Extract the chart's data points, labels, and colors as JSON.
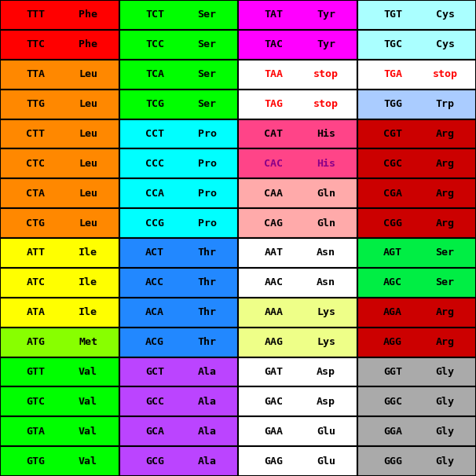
{
  "rows": [
    [
      {
        "codon": "TTT",
        "aa": "Phe",
        "bg": "#FF0000",
        "fg": "#000000",
        "aa_fg": "#000000"
      },
      {
        "codon": "TCT",
        "aa": "Ser",
        "bg": "#00FF00",
        "fg": "#000000",
        "aa_fg": "#000000"
      },
      {
        "codon": "TAT",
        "aa": "Tyr",
        "bg": "#FF00FF",
        "fg": "#000000",
        "aa_fg": "#000000"
      },
      {
        "codon": "TGT",
        "aa": "Cys",
        "bg": "#AAFFFF",
        "fg": "#000000",
        "aa_fg": "#000000"
      }
    ],
    [
      {
        "codon": "TTC",
        "aa": "Phe",
        "bg": "#FF0000",
        "fg": "#000000",
        "aa_fg": "#000000"
      },
      {
        "codon": "TCC",
        "aa": "Ser",
        "bg": "#00FF00",
        "fg": "#000000",
        "aa_fg": "#000000"
      },
      {
        "codon": "TAC",
        "aa": "Tyr",
        "bg": "#FF00FF",
        "fg": "#000000",
        "aa_fg": "#000000"
      },
      {
        "codon": "TGC",
        "aa": "Cys",
        "bg": "#AAFFFF",
        "fg": "#000000",
        "aa_fg": "#000000"
      }
    ],
    [
      {
        "codon": "TTA",
        "aa": "Leu",
        "bg": "#FF8800",
        "fg": "#000000",
        "aa_fg": "#000000"
      },
      {
        "codon": "TCA",
        "aa": "Ser",
        "bg": "#00FF00",
        "fg": "#000000",
        "aa_fg": "#000000"
      },
      {
        "codon": "TAA",
        "aa": "stop",
        "bg": "#FFFFFF",
        "fg": "#FF0000",
        "aa_fg": "#FF0000"
      },
      {
        "codon": "TGA",
        "aa": "stop",
        "bg": "#FFFFFF",
        "fg": "#FF0000",
        "aa_fg": "#FF0000"
      }
    ],
    [
      {
        "codon": "TTG",
        "aa": "Leu",
        "bg": "#FF8800",
        "fg": "#000000",
        "aa_fg": "#000000"
      },
      {
        "codon": "TCG",
        "aa": "Ser",
        "bg": "#00FF00",
        "fg": "#000000",
        "aa_fg": "#000000"
      },
      {
        "codon": "TAG",
        "aa": "stop",
        "bg": "#FFFFFF",
        "fg": "#FF0000",
        "aa_fg": "#FF0000"
      },
      {
        "codon": "TGG",
        "aa": "Trp",
        "bg": "#AACCFF",
        "fg": "#000000",
        "aa_fg": "#000000"
      }
    ],
    [
      {
        "codon": "CTT",
        "aa": "Leu",
        "bg": "#FF8800",
        "fg": "#000000",
        "aa_fg": "#000000"
      },
      {
        "codon": "CCT",
        "aa": "Pro",
        "bg": "#00FFFF",
        "fg": "#000000",
        "aa_fg": "#000000"
      },
      {
        "codon": "CAT",
        "aa": "His",
        "bg": "#FF4488",
        "fg": "#000000",
        "aa_fg": "#000000"
      },
      {
        "codon": "CGT",
        "aa": "Arg",
        "bg": "#CC0000",
        "fg": "#000000",
        "aa_fg": "#000000"
      }
    ],
    [
      {
        "codon": "CTC",
        "aa": "Leu",
        "bg": "#FF8800",
        "fg": "#000000",
        "aa_fg": "#000000"
      },
      {
        "codon": "CCC",
        "aa": "Pro",
        "bg": "#00FFFF",
        "fg": "#000000",
        "aa_fg": "#000000"
      },
      {
        "codon": "CAC",
        "aa": "His",
        "bg": "#FF4488",
        "fg": "#880088",
        "aa_fg": "#880088"
      },
      {
        "codon": "CGC",
        "aa": "Arg",
        "bg": "#CC0000",
        "fg": "#000000",
        "aa_fg": "#000000"
      }
    ],
    [
      {
        "codon": "CTA",
        "aa": "Leu",
        "bg": "#FF8800",
        "fg": "#000000",
        "aa_fg": "#000000"
      },
      {
        "codon": "CCA",
        "aa": "Pro",
        "bg": "#00FFFF",
        "fg": "#000000",
        "aa_fg": "#000000"
      },
      {
        "codon": "CAA",
        "aa": "Gln",
        "bg": "#FFAAAA",
        "fg": "#000000",
        "aa_fg": "#000000"
      },
      {
        "codon": "CGA",
        "aa": "Arg",
        "bg": "#CC0000",
        "fg": "#000000",
        "aa_fg": "#000000"
      }
    ],
    [
      {
        "codon": "CTG",
        "aa": "Leu",
        "bg": "#FF8800",
        "fg": "#000000",
        "aa_fg": "#000000"
      },
      {
        "codon": "CCG",
        "aa": "Pro",
        "bg": "#00FFFF",
        "fg": "#000000",
        "aa_fg": "#000000"
      },
      {
        "codon": "CAG",
        "aa": "Gln",
        "bg": "#FFAAAA",
        "fg": "#000000",
        "aa_fg": "#000000"
      },
      {
        "codon": "CGG",
        "aa": "Arg",
        "bg": "#CC0000",
        "fg": "#000000",
        "aa_fg": "#000000"
      }
    ],
    [
      {
        "codon": "ATT",
        "aa": "Ile",
        "bg": "#FFFF00",
        "fg": "#000000",
        "aa_fg": "#000000"
      },
      {
        "codon": "ACT",
        "aa": "Thr",
        "bg": "#2288FF",
        "fg": "#000000",
        "aa_fg": "#000000"
      },
      {
        "codon": "AAT",
        "aa": "Asn",
        "bg": "#FFFFFF",
        "fg": "#000000",
        "aa_fg": "#000000"
      },
      {
        "codon": "AGT",
        "aa": "Ser",
        "bg": "#00EE44",
        "fg": "#000000",
        "aa_fg": "#000000"
      }
    ],
    [
      {
        "codon": "ATC",
        "aa": "Ile",
        "bg": "#FFFF00",
        "fg": "#000000",
        "aa_fg": "#000000"
      },
      {
        "codon": "ACC",
        "aa": "Thr",
        "bg": "#2288FF",
        "fg": "#000000",
        "aa_fg": "#000000"
      },
      {
        "codon": "AAC",
        "aa": "Asn",
        "bg": "#FFFFFF",
        "fg": "#000000",
        "aa_fg": "#000000"
      },
      {
        "codon": "AGC",
        "aa": "Ser",
        "bg": "#00EE44",
        "fg": "#000000",
        "aa_fg": "#000000"
      }
    ],
    [
      {
        "codon": "ATA",
        "aa": "Ile",
        "bg": "#FFFF00",
        "fg": "#000000",
        "aa_fg": "#000000"
      },
      {
        "codon": "ACA",
        "aa": "Thr",
        "bg": "#2288FF",
        "fg": "#000000",
        "aa_fg": "#000000"
      },
      {
        "codon": "AAA",
        "aa": "Lys",
        "bg": "#EEFF88",
        "fg": "#000000",
        "aa_fg": "#000000"
      },
      {
        "codon": "AGA",
        "aa": "Arg",
        "bg": "#CC0000",
        "fg": "#000000",
        "aa_fg": "#000000"
      }
    ],
    [
      {
        "codon": "ATG",
        "aa": "Met",
        "bg": "#88FF00",
        "fg": "#000000",
        "aa_fg": "#000000"
      },
      {
        "codon": "ACG",
        "aa": "Thr",
        "bg": "#2288FF",
        "fg": "#000000",
        "aa_fg": "#000000"
      },
      {
        "codon": "AAG",
        "aa": "Lys",
        "bg": "#EEFF88",
        "fg": "#000000",
        "aa_fg": "#000000"
      },
      {
        "codon": "AGG",
        "aa": "Arg",
        "bg": "#CC0000",
        "fg": "#000000",
        "aa_fg": "#000000"
      }
    ],
    [
      {
        "codon": "GTT",
        "aa": "Val",
        "bg": "#00FF00",
        "fg": "#000000",
        "aa_fg": "#000000"
      },
      {
        "codon": "GCT",
        "aa": "Ala",
        "bg": "#BB44FF",
        "fg": "#000000",
        "aa_fg": "#000000"
      },
      {
        "codon": "GAT",
        "aa": "Asp",
        "bg": "#FFFFFF",
        "fg": "#000000",
        "aa_fg": "#000000"
      },
      {
        "codon": "GGT",
        "aa": "Gly",
        "bg": "#AAAAAA",
        "fg": "#000000",
        "aa_fg": "#000000"
      }
    ],
    [
      {
        "codon": "GTC",
        "aa": "Val",
        "bg": "#00FF00",
        "fg": "#000000",
        "aa_fg": "#000000"
      },
      {
        "codon": "GCC",
        "aa": "Ala",
        "bg": "#BB44FF",
        "fg": "#000000",
        "aa_fg": "#000000"
      },
      {
        "codon": "GAC",
        "aa": "Asp",
        "bg": "#FFFFFF",
        "fg": "#000000",
        "aa_fg": "#000000"
      },
      {
        "codon": "GGC",
        "aa": "Gly",
        "bg": "#AAAAAA",
        "fg": "#000000",
        "aa_fg": "#000000"
      }
    ],
    [
      {
        "codon": "GTA",
        "aa": "Val",
        "bg": "#00FF00",
        "fg": "#000000",
        "aa_fg": "#000000"
      },
      {
        "codon": "GCA",
        "aa": "Ala",
        "bg": "#BB44FF",
        "fg": "#000000",
        "aa_fg": "#000000"
      },
      {
        "codon": "GAA",
        "aa": "Glu",
        "bg": "#FFFFFF",
        "fg": "#000000",
        "aa_fg": "#000000"
      },
      {
        "codon": "GGA",
        "aa": "Gly",
        "bg": "#AAAAAA",
        "fg": "#000000",
        "aa_fg": "#000000"
      }
    ],
    [
      {
        "codon": "GTG",
        "aa": "Val",
        "bg": "#00FF00",
        "fg": "#000000",
        "aa_fg": "#000000"
      },
      {
        "codon": "GCG",
        "aa": "Ala",
        "bg": "#BB44FF",
        "fg": "#000000",
        "aa_fg": "#000000"
      },
      {
        "codon": "GAG",
        "aa": "Glu",
        "bg": "#FFFFFF",
        "fg": "#000000",
        "aa_fg": "#000000"
      },
      {
        "codon": "GGG",
        "aa": "Gly",
        "bg": "#AAAAAA",
        "fg": "#000000",
        "aa_fg": "#000000"
      }
    ]
  ],
  "fig_width": 6.06,
  "fig_height": 6.06,
  "dpi": 100,
  "border_color": "#000000",
  "border_lw": 1.5,
  "font_size": 9.5,
  "font_family": "monospace"
}
